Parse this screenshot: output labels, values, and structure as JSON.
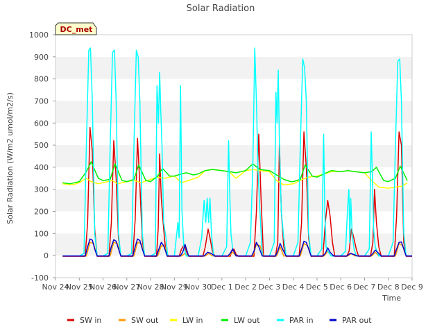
{
  "chart_data": {
    "type": "line",
    "title": "Solar Radiation",
    "xlabel": "Time",
    "ylabel": "Solar Radiation (W/m2 umol/m2/s)",
    "ylim": [
      -100,
      1000
    ],
    "yticks": [
      -100,
      0,
      100,
      200,
      300,
      400,
      500,
      600,
      700,
      800,
      900,
      1000
    ],
    "xlim": [
      0,
      15
    ],
    "xticks": [
      0,
      1,
      2,
      3,
      4,
      5,
      6,
      7,
      8,
      9,
      10,
      11,
      12,
      13,
      14,
      15
    ],
    "xtick_labels": [
      "Nov 24",
      "Nov 25",
      "Nov 26",
      "Nov 27",
      "Nov 28",
      "Nov 29",
      "Nov 30",
      "Dec 1",
      "Dec 2",
      "Dec 3",
      "Dec 4",
      "Dec 5",
      "Dec 6",
      "Dec 7",
      "Dec 8",
      "Dec 9"
    ],
    "grid": "horizontal bands",
    "legend_position": "bottom",
    "annotation": "DC_met",
    "series": [
      {
        "name": "SW in",
        "color": "#dd0000",
        "x": [
          0.3,
          1.0,
          1.25,
          1.35,
          1.45,
          1.55,
          1.65,
          1.75,
          2.0,
          2.25,
          2.35,
          2.45,
          2.55,
          2.65,
          2.75,
          3.0,
          3.25,
          3.35,
          3.45,
          3.55,
          3.65,
          3.75,
          4.0,
          4.25,
          4.32,
          4.38,
          4.45,
          4.55,
          4.62,
          4.7,
          5.0,
          5.2,
          5.3,
          5.42,
          5.5,
          5.6,
          5.7,
          6.0,
          6.2,
          6.3,
          6.42,
          6.5,
          6.6,
          6.7,
          7.0,
          7.25,
          7.35,
          7.42,
          7.5,
          7.6,
          7.7,
          8.0,
          8.25,
          8.35,
          8.45,
          8.55,
          8.65,
          8.75,
          9.0,
          9.25,
          9.35,
          9.42,
          9.5,
          9.6,
          9.7,
          10.0,
          10.25,
          10.35,
          10.45,
          10.55,
          10.65,
          10.75,
          11.0,
          11.25,
          11.35,
          11.45,
          11.55,
          11.65,
          11.75,
          12.0,
          12.25,
          12.35,
          12.45,
          12.55,
          12.65,
          12.75,
          13.0,
          13.25,
          13.35,
          13.42,
          13.5,
          13.6,
          13.7,
          14.0,
          14.25,
          14.35,
          14.45,
          14.55,
          14.65,
          14.75,
          15.0
        ],
        "values": [
          -3,
          -3,
          -3,
          150,
          580,
          470,
          120,
          -3,
          -3,
          -3,
          150,
          520,
          350,
          80,
          -3,
          -3,
          -3,
          160,
          530,
          320,
          70,
          -3,
          -3,
          -3,
          120,
          460,
          260,
          120,
          40,
          -3,
          -3,
          -3,
          30,
          50,
          20,
          -3,
          -3,
          -3,
          -3,
          40,
          120,
          80,
          20,
          -3,
          -3,
          -3,
          -3,
          20,
          30,
          5,
          -3,
          -3,
          -3,
          -3,
          200,
          550,
          250,
          -3,
          -3,
          -3,
          60,
          510,
          200,
          40,
          -3,
          -3,
          -3,
          150,
          560,
          400,
          80,
          -3,
          -3,
          -3,
          150,
          250,
          180,
          60,
          -3,
          -3,
          -3,
          20,
          120,
          80,
          30,
          -3,
          -3,
          -3,
          60,
          300,
          150,
          40,
          -3,
          -3,
          -3,
          180,
          560,
          500,
          60,
          -3,
          -3
        ]
      },
      {
        "name": "SW out",
        "color": "#ff9900",
        "x": [
          0.3,
          1.3,
          1.45,
          1.6,
          1.75,
          2.3,
          2.45,
          2.6,
          2.75,
          3.3,
          3.45,
          3.6,
          3.75,
          4.3,
          4.45,
          4.6,
          4.75,
          5.3,
          5.45,
          5.6,
          6.3,
          6.45,
          6.6,
          7.3,
          7.45,
          7.6,
          8.3,
          8.45,
          8.6,
          8.75,
          9.3,
          9.45,
          9.6,
          10.3,
          10.45,
          10.6,
          10.75,
          11.3,
          11.45,
          11.6,
          12.3,
          12.45,
          12.6,
          13.3,
          13.45,
          13.6,
          14.3,
          14.45,
          14.6,
          14.75,
          15.0
        ],
        "values": [
          -2,
          -2,
          60,
          55,
          -2,
          -2,
          60,
          55,
          -2,
          -2,
          60,
          55,
          -2,
          -2,
          45,
          40,
          -2,
          -2,
          10,
          -2,
          -2,
          10,
          -2,
          -2,
          15,
          -2,
          -2,
          50,
          45,
          -2,
          -2,
          40,
          -2,
          -2,
          55,
          45,
          -2,
          -2,
          20,
          -2,
          -2,
          10,
          -2,
          -2,
          15,
          -2,
          -2,
          55,
          45,
          -2,
          -2
        ]
      },
      {
        "name": "LW in",
        "color": "#ffff00",
        "x": [
          0.3,
          0.7,
          1.0,
          1.3,
          1.5,
          1.8,
          2.0,
          2.4,
          2.6,
          3.0,
          3.3,
          3.6,
          4.0,
          4.3,
          4.6,
          5.0,
          5.3,
          5.6,
          6.0,
          6.3,
          6.6,
          7.0,
          7.3,
          7.6,
          8.0,
          8.3,
          8.6,
          9.0,
          9.3,
          9.6,
          10.0,
          10.3,
          10.6,
          11.0,
          11.3,
          11.6,
          12.0,
          12.3,
          12.6,
          13.0,
          13.3,
          13.6,
          14.0,
          14.3,
          14.6,
          14.8
        ],
        "values": [
          325,
          320,
          330,
          350,
          335,
          325,
          330,
          340,
          325,
          335,
          340,
          330,
          345,
          355,
          350,
          360,
          330,
          340,
          355,
          385,
          390,
          385,
          380,
          350,
          385,
          390,
          385,
          380,
          340,
          320,
          325,
          340,
          355,
          360,
          370,
          380,
          380,
          385,
          380,
          375,
          340,
          310,
          305,
          310,
          315,
          330
        ]
      },
      {
        "name": "LW out",
        "color": "#00ee00",
        "x": [
          0.3,
          0.6,
          1.0,
          1.3,
          1.5,
          1.8,
          2.0,
          2.3,
          2.5,
          2.8,
          3.0,
          3.3,
          3.5,
          3.8,
          4.0,
          4.3,
          4.5,
          4.8,
          5.0,
          5.3,
          5.5,
          5.8,
          6.0,
          6.3,
          6.6,
          7.0,
          7.3,
          7.6,
          8.0,
          8.3,
          8.6,
          9.0,
          9.3,
          9.6,
          9.9,
          10.0,
          10.3,
          10.5,
          10.8,
          11.0,
          11.3,
          11.6,
          12.0,
          12.3,
          12.6,
          13.0,
          13.3,
          13.5,
          13.8,
          14.0,
          14.3,
          14.5,
          14.8
        ],
        "values": [
          330,
          325,
          335,
          380,
          425,
          350,
          340,
          345,
          415,
          340,
          335,
          345,
          410,
          340,
          335,
          360,
          395,
          360,
          360,
          370,
          375,
          365,
          370,
          385,
          390,
          385,
          380,
          375,
          385,
          415,
          390,
          385,
          365,
          345,
          335,
          335,
          345,
          410,
          360,
          355,
          370,
          385,
          380,
          385,
          380,
          375,
          380,
          400,
          340,
          335,
          350,
          405,
          340
        ]
      },
      {
        "name": "PAR in",
        "color": "#00ffff",
        "x": [
          0.3,
          1.0,
          1.2,
          1.3,
          1.4,
          1.47,
          1.55,
          1.65,
          1.75,
          2.0,
          2.2,
          2.3,
          2.4,
          2.48,
          2.55,
          2.65,
          2.75,
          3.0,
          3.2,
          3.3,
          3.4,
          3.48,
          3.55,
          3.65,
          3.75,
          4.0,
          4.2,
          4.27,
          4.33,
          4.38,
          4.43,
          4.48,
          4.55,
          4.65,
          4.72,
          5.0,
          5.15,
          5.2,
          5.26,
          5.32,
          5.4,
          5.5,
          6.0,
          6.15,
          6.25,
          6.32,
          6.38,
          6.44,
          6.5,
          6.56,
          6.65,
          7.0,
          7.2,
          7.28,
          7.33,
          7.38,
          7.45,
          7.6,
          8.0,
          8.2,
          8.3,
          8.38,
          8.45,
          8.52,
          8.6,
          8.7,
          9.0,
          9.2,
          9.27,
          9.32,
          9.37,
          9.42,
          9.5,
          9.6,
          9.7,
          10.0,
          10.2,
          10.3,
          10.4,
          10.48,
          10.55,
          10.65,
          10.75,
          11.0,
          11.2,
          11.28,
          11.33,
          11.38,
          11.45,
          11.6,
          12.0,
          12.2,
          12.28,
          12.34,
          12.38,
          12.42,
          12.48,
          12.56,
          12.65,
          13.0,
          13.2,
          13.28,
          13.33,
          13.38,
          13.45,
          13.6,
          14.0,
          14.2,
          14.3,
          14.4,
          14.48,
          14.55,
          14.65,
          14.75,
          15.0
        ],
        "values": [
          -2,
          -2,
          10,
          500,
          930,
          940,
          700,
          100,
          -2,
          -2,
          10,
          500,
          920,
          930,
          700,
          100,
          -2,
          -2,
          10,
          500,
          930,
          900,
          700,
          100,
          -2,
          -2,
          10,
          770,
          600,
          830,
          650,
          500,
          150,
          80,
          -2,
          -2,
          150,
          80,
          770,
          200,
          40,
          -2,
          -2,
          80,
          250,
          150,
          260,
          150,
          260,
          100,
          -2,
          -2,
          40,
          520,
          280,
          100,
          30,
          -2,
          -2,
          60,
          400,
          940,
          700,
          380,
          200,
          -2,
          -2,
          60,
          740,
          600,
          840,
          500,
          200,
          80,
          -2,
          -2,
          60,
          500,
          890,
          850,
          700,
          100,
          -2,
          -2,
          30,
          550,
          200,
          40,
          20,
          -2,
          -2,
          20,
          200,
          300,
          60,
          260,
          100,
          30,
          -2,
          -2,
          30,
          560,
          350,
          120,
          40,
          -2,
          -2,
          60,
          500,
          880,
          890,
          700,
          100,
          -2,
          -2
        ]
      },
      {
        "name": "PAR out",
        "color": "#0000cc",
        "x": [
          0.3,
          1.25,
          1.35,
          1.45,
          1.55,
          1.65,
          1.75,
          2.25,
          2.35,
          2.45,
          2.55,
          2.65,
          2.75,
          3.25,
          3.35,
          3.45,
          3.55,
          3.65,
          3.75,
          4.25,
          4.35,
          4.45,
          4.55,
          4.7,
          5.25,
          5.35,
          5.45,
          5.6,
          6.25,
          6.4,
          6.55,
          6.7,
          7.25,
          7.35,
          7.45,
          7.6,
          8.25,
          8.35,
          8.45,
          8.55,
          8.7,
          9.25,
          9.35,
          9.45,
          9.55,
          9.7,
          10.25,
          10.35,
          10.45,
          10.55,
          10.65,
          10.75,
          11.25,
          11.35,
          11.45,
          11.55,
          11.7,
          12.25,
          12.4,
          12.55,
          12.7,
          13.25,
          13.35,
          13.45,
          13.55,
          13.7,
          14.25,
          14.35,
          14.45,
          14.55,
          14.65,
          14.75,
          15.0
        ],
        "values": [
          -2,
          -2,
          40,
          75,
          70,
          30,
          -2,
          -2,
          40,
          72,
          65,
          30,
          -2,
          -2,
          40,
          75,
          68,
          30,
          -2,
          -2,
          30,
          60,
          45,
          -2,
          -2,
          15,
          50,
          -2,
          -2,
          15,
          10,
          -2,
          -2,
          10,
          30,
          -2,
          -2,
          20,
          60,
          40,
          -2,
          -2,
          20,
          55,
          30,
          -2,
          -2,
          30,
          65,
          60,
          30,
          -2,
          -2,
          10,
          35,
          15,
          -2,
          -2,
          10,
          5,
          -2,
          -2,
          10,
          25,
          15,
          -2,
          -2,
          30,
          60,
          62,
          30,
          -2,
          -2
        ]
      }
    ]
  }
}
